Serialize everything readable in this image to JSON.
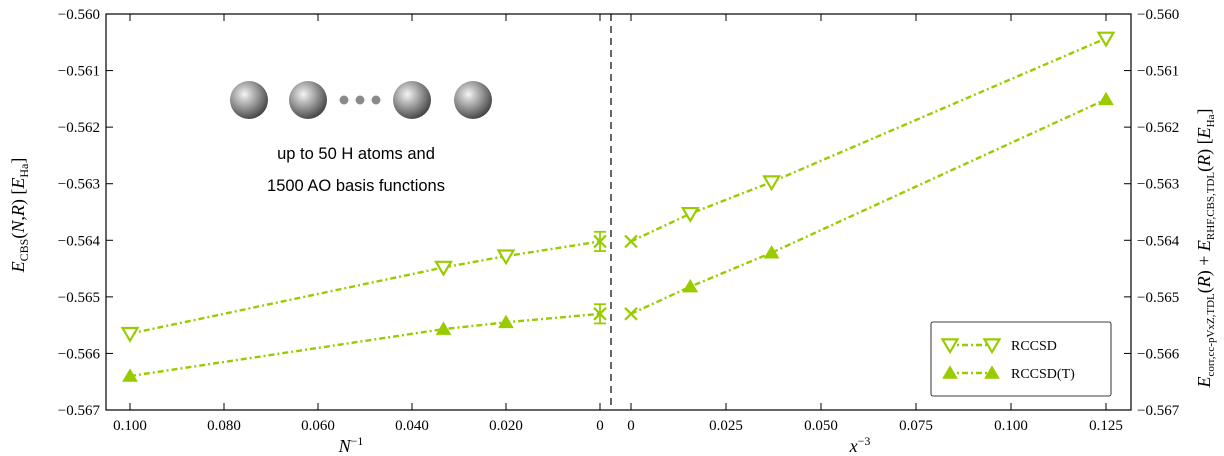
{
  "chart_data": {
    "type": "line",
    "colors": {
      "series": "#99cc00",
      "axis": "#000000",
      "divider": "#000000"
    },
    "ylim": [
      -0.567,
      -0.56
    ],
    "y_ticks": [
      -0.567,
      -0.566,
      -0.565,
      -0.564,
      -0.563,
      -0.562,
      -0.561,
      -0.56
    ],
    "y_tick_labels": [
      "−0.567",
      "−0.566",
      "−0.565",
      "−0.564",
      "−0.563",
      "−0.562",
      "−0.561",
      "−0.560"
    ],
    "left_panel": {
      "x_ticks": [
        0.1,
        0.08,
        0.06,
        0.04,
        0.02,
        0
      ],
      "x_tick_labels": [
        "0.100",
        "0.080",
        "0.060",
        "0.040",
        "0.020",
        "0"
      ],
      "series": [
        {
          "name": "RCCSD",
          "marker": "triangle-down-open",
          "x": [
            0.1,
            0.0333,
            0.02
          ],
          "y": [
            -0.56565,
            -0.56448,
            -0.56428
          ]
        },
        {
          "name": "RCCSD(T)",
          "marker": "triangle-up-filled",
          "x": [
            0.1,
            0.0333,
            0.02
          ],
          "y": [
            -0.5664,
            -0.56557,
            -0.56545
          ]
        }
      ],
      "extrapolated": [
        {
          "series": "RCCSD",
          "x": 0,
          "y": -0.56402,
          "err": 0.00017
        },
        {
          "series": "RCCSD(T)",
          "x": 0,
          "y": -0.5653,
          "err": 0.00017
        }
      ]
    },
    "right_panel": {
      "x_ticks": [
        0,
        0.025,
        0.05,
        0.075,
        0.1,
        0.125
      ],
      "x_tick_labels": [
        "0",
        "0.025",
        "0.050",
        "0.075",
        "0.100",
        "0.125"
      ],
      "series": [
        {
          "name": "RCCSD",
          "marker": "triangle-down-open",
          "x": [
            0,
            0.0156,
            0.037,
            0.125
          ],
          "y": [
            -0.56402,
            -0.56353,
            -0.56297,
            -0.56043
          ]
        },
        {
          "name": "RCCSD(T)",
          "marker": "triangle-up-filled",
          "x": [
            0,
            0.0156,
            0.037,
            0.125
          ],
          "y": [
            -0.5653,
            -0.56482,
            -0.56422,
            -0.56151
          ]
        }
      ]
    },
    "annotations": [
      "up to 50 H atoms and",
      "1500 AO basis functions"
    ],
    "legend": {
      "placement": "lower-right",
      "entries": [
        "RCCSD",
        "RCCSD(T)"
      ]
    },
    "grid": false
  }
}
